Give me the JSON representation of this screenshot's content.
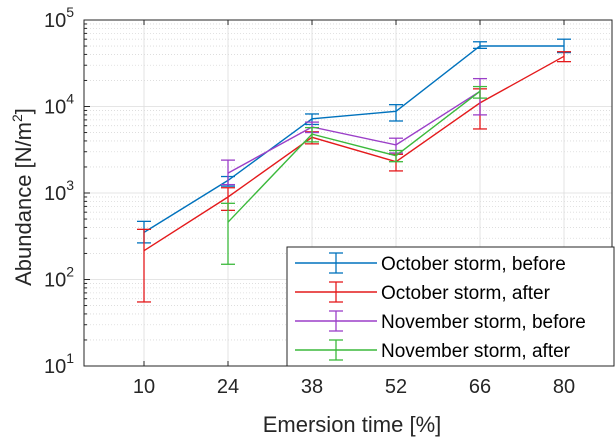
{
  "chart_data": {
    "type": "line",
    "title": "",
    "xlabel": "Emersion time [%]",
    "ylabel": "Abundance [N/m",
    "ylabel_sup": "2",
    "ylabel_close": "]",
    "x": [
      10,
      24,
      38,
      52,
      66,
      80
    ],
    "xlim": [
      0,
      88
    ],
    "ylim": [
      10,
      100000
    ],
    "yscale": "log",
    "yticks": [
      {
        "value": 10,
        "base": "10",
        "exp": "1"
      },
      {
        "value": 100,
        "base": "10",
        "exp": "2"
      },
      {
        "value": 1000,
        "base": "10",
        "exp": "3"
      },
      {
        "value": 10000,
        "base": "10",
        "exp": "4"
      },
      {
        "value": 100000,
        "base": "10",
        "exp": "5"
      }
    ],
    "xticks": [
      "10",
      "24",
      "38",
      "52",
      "66",
      "80"
    ],
    "grid": true,
    "legend_position": "bottom-right",
    "series": [
      {
        "name": "October storm, before",
        "color": "#0072BD",
        "x": [
          10,
          24,
          38,
          52,
          66,
          80
        ],
        "values": [
          350,
          1400,
          7200,
          8800,
          50000,
          50000
        ],
        "err_low": [
          265,
          1200,
          6200,
          6800,
          47000,
          42000
        ],
        "err_high": [
          470,
          1550,
          8200,
          10500,
          56000,
          60000
        ]
      },
      {
        "name": "October storm, after",
        "color": "#D95319",
        "stroke": "#E41A1C",
        "x": [
          10,
          24,
          38,
          52,
          66,
          80
        ],
        "values": [
          215,
          900,
          4400,
          2300,
          11000,
          38000
        ],
        "err_low": [
          55,
          630,
          3700,
          1800,
          5500,
          33000
        ],
        "err_high": [
          380,
          1150,
          5100,
          2800,
          16000,
          43000
        ]
      },
      {
        "name": "November storm, before",
        "color": "#7E2F8E",
        "stroke": "#9B3FC8",
        "x": [
          24,
          38,
          52,
          66
        ],
        "values": [
          1700,
          5800,
          3600,
          15000
        ],
        "err_low": [
          1250,
          5000,
          2900,
          8000
        ],
        "err_high": [
          2400,
          6600,
          4300,
          21000
        ]
      },
      {
        "name": "November storm, after",
        "color": "#3CB93C",
        "x": [
          24,
          38,
          52,
          66
        ],
        "values": [
          460,
          4800,
          2700,
          15000
        ],
        "err_low": [
          150,
          3900,
          2300,
          12500
        ],
        "err_high": [
          760,
          5700,
          3100,
          17000
        ]
      }
    ]
  }
}
